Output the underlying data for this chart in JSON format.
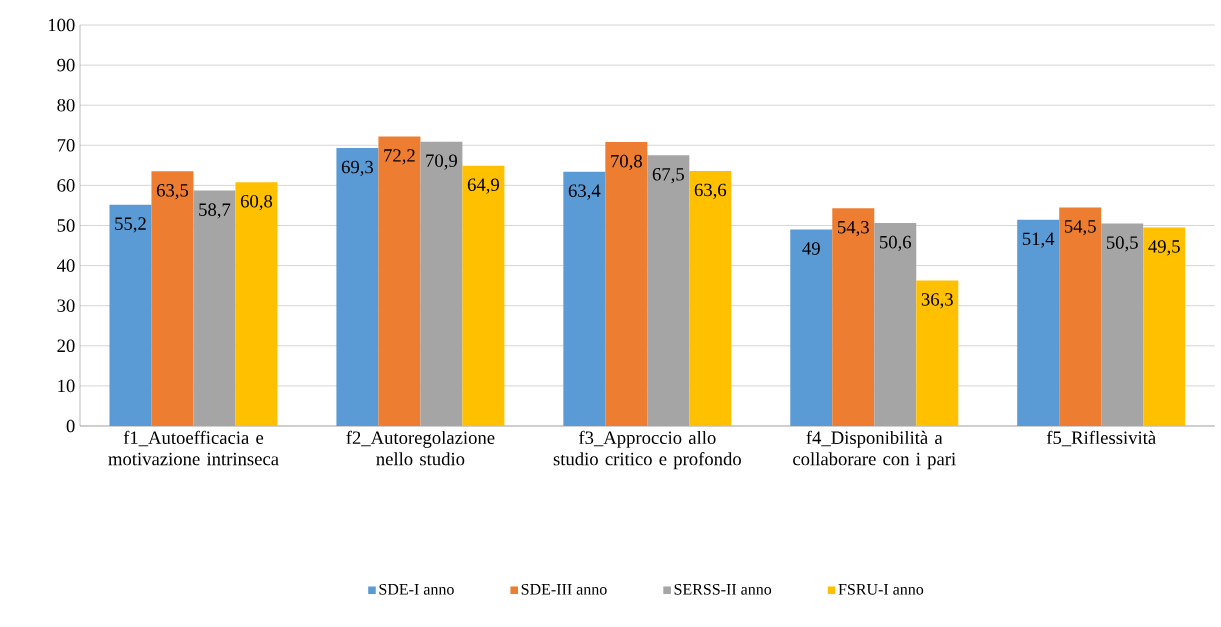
{
  "chart_data": {
    "type": "bar",
    "categories": [
      "f1_Autoefficacia e motivazione intrinseca",
      "f2_Autoregolazione nello studio",
      "f3_Approccio allo studio critico e profondo",
      "f4_Disponibilità a collaborare con i pari",
      "f5_Riflessività"
    ],
    "series": [
      {
        "name": "SDE-I anno",
        "color": "#5b9bd5",
        "values": [
          55.2,
          69.3,
          63.4,
          49,
          51.4
        ],
        "value_labels": [
          "55,2",
          "69,3",
          "63,4",
          "49",
          "51,4"
        ]
      },
      {
        "name": "SDE-III anno",
        "color": "#ed7d31",
        "values": [
          63.5,
          72.2,
          70.8,
          54.3,
          54.5
        ],
        "value_labels": [
          "63,5",
          "72,2",
          "70,8",
          "54,3",
          "54,5"
        ]
      },
      {
        "name": "SERSS-II anno",
        "color": "#a5a5a5",
        "values": [
          58.7,
          70.9,
          67.5,
          50.6,
          50.5
        ],
        "value_labels": [
          "58,7",
          "70,9",
          "67,5",
          "50,6",
          "50,5"
        ]
      },
      {
        "name": "FSRU-I anno",
        "color": "#ffc000",
        "values": [
          60.8,
          64.9,
          63.6,
          36.3,
          49.5
        ],
        "value_labels": [
          "60,8",
          "64,9",
          "63,6",
          "36,3",
          "49,5"
        ]
      }
    ],
    "ylim": [
      0,
      100
    ],
    "yticks": [
      0,
      10,
      20,
      30,
      40,
      50,
      60,
      70,
      80,
      90,
      100
    ],
    "grid": "y",
    "legend": "bottom"
  }
}
